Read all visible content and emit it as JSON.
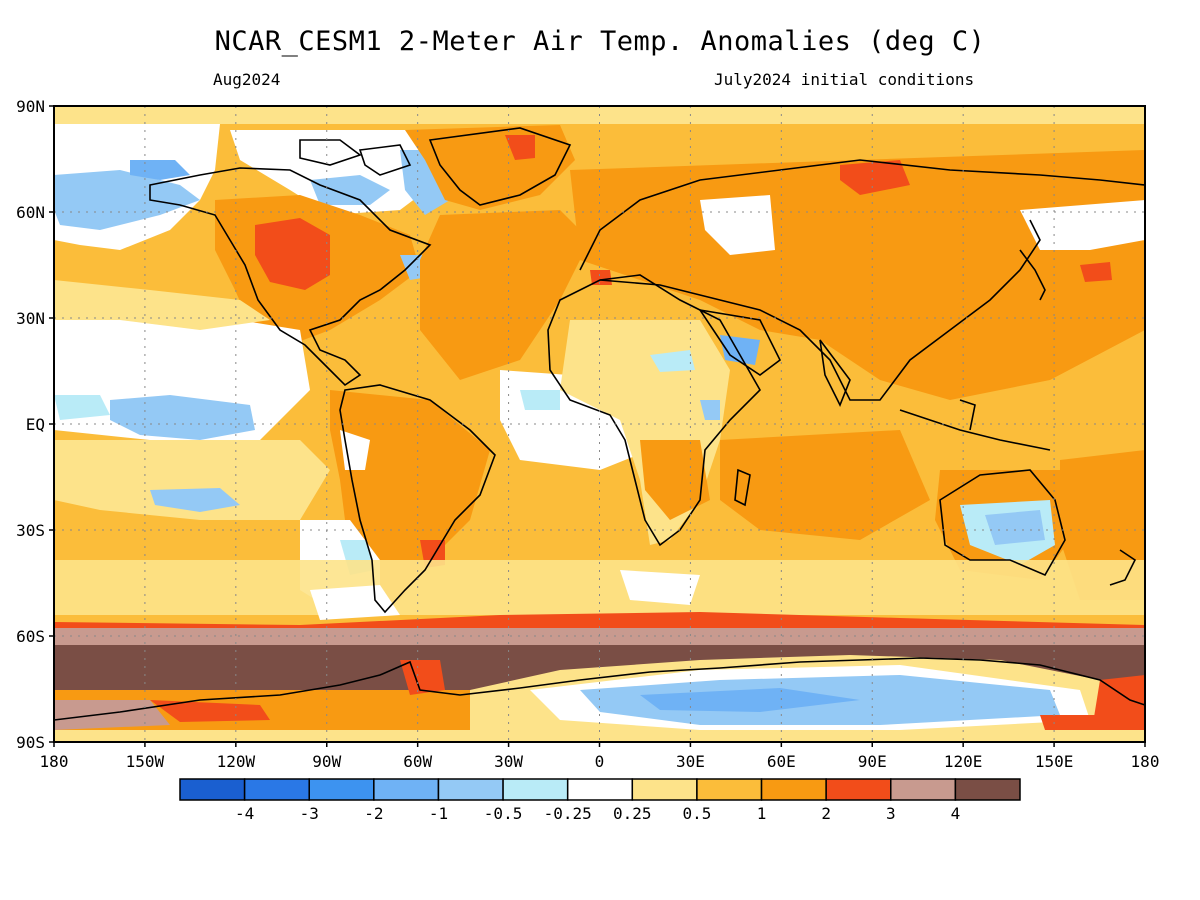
{
  "title": "NCAR_CESM1 2-Meter Air Temp. Anomalies (deg C)",
  "subtitle_left": "Aug2024",
  "subtitle_right": "July2024 initial conditions",
  "map": {
    "lat_labels": [
      "90N",
      "60N",
      "30N",
      "EQ",
      "30S",
      "60S",
      "90S"
    ],
    "lon_labels": [
      "180",
      "150W",
      "120W",
      "90W",
      "60W",
      "30W",
      "0",
      "30E",
      "60E",
      "90E",
      "120E",
      "150E",
      "180"
    ],
    "lat_range": [
      -90,
      90
    ],
    "lon_range": [
      -180,
      180
    ]
  },
  "colorbar": {
    "labels": [
      "-4",
      "-3",
      "-2",
      "-1",
      "-0.5",
      "-0.25",
      "0.25",
      "0.5",
      "1",
      "2",
      "3",
      "4"
    ],
    "colors": [
      "#1a5fd0",
      "#2a78e6",
      "#3d93f0",
      "#6fb2f5",
      "#94c9f5",
      "#b9ebf7",
      "#ffffff",
      "#fde38a",
      "#fbbd3a",
      "#f89a12",
      "#f24d1a",
      "#c89a8f",
      "#7a4e45"
    ]
  },
  "colors": {
    "background_anomaly": "#f9b640",
    "cold_anomaly": "#94c9f5",
    "strong_warm": "#7a4e45"
  }
}
